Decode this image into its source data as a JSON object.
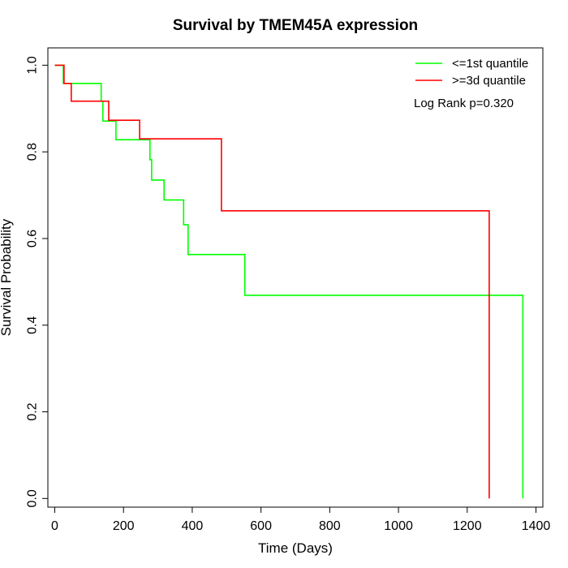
{
  "chart_data": {
    "type": "line",
    "step": true,
    "title": "Survival by TMEM45A expression",
    "xlabel": "Time (Days)",
    "ylabel": "Survival Probability",
    "xlim": [
      -20,
      1420
    ],
    "ylim": [
      -0.02,
      1.04
    ],
    "xticks": [
      0,
      200,
      400,
      600,
      800,
      1000,
      1200,
      1400
    ],
    "yticks": [
      0.0,
      0.2,
      0.4,
      0.6,
      0.8,
      1.0
    ],
    "xtick_labels": [
      "0",
      "200",
      "400",
      "600",
      "800",
      "1000",
      "1200",
      "1400"
    ],
    "ytick_labels": [
      "0.0",
      "0.2",
      "0.4",
      "0.6",
      "0.8",
      "1.0"
    ],
    "legend_position": "top-right",
    "grid": false,
    "annotation": "Log Rank p=0.320",
    "series": [
      {
        "name": "<=1st quantile",
        "color": "#00ff00",
        "points": [
          [
            0,
            1.0
          ],
          [
            25,
            1.0
          ],
          [
            25,
            0.958
          ],
          [
            135,
            0.958
          ],
          [
            135,
            0.917
          ],
          [
            140,
            0.917
          ],
          [
            140,
            0.871
          ],
          [
            178,
            0.871
          ],
          [
            178,
            0.828
          ],
          [
            277,
            0.828
          ],
          [
            277,
            0.782
          ],
          [
            282,
            0.782
          ],
          [
            282,
            0.735
          ],
          [
            318,
            0.735
          ],
          [
            318,
            0.689
          ],
          [
            375,
            0.689
          ],
          [
            375,
            0.632
          ],
          [
            388,
            0.632
          ],
          [
            388,
            0.563
          ],
          [
            553,
            0.563
          ],
          [
            553,
            0.469
          ],
          [
            1362,
            0.469
          ],
          [
            1362,
            0.0
          ]
        ]
      },
      {
        "name": ">=3d quantile",
        "color": "#ff0000",
        "points": [
          [
            0,
            1.0
          ],
          [
            27,
            1.0
          ],
          [
            27,
            0.958
          ],
          [
            48,
            0.958
          ],
          [
            48,
            0.917
          ],
          [
            157,
            0.917
          ],
          [
            157,
            0.873
          ],
          [
            247,
            0.873
          ],
          [
            247,
            0.83
          ],
          [
            485,
            0.83
          ],
          [
            485,
            0.664
          ],
          [
            1264,
            0.664
          ],
          [
            1264,
            0.0
          ]
        ]
      }
    ]
  }
}
